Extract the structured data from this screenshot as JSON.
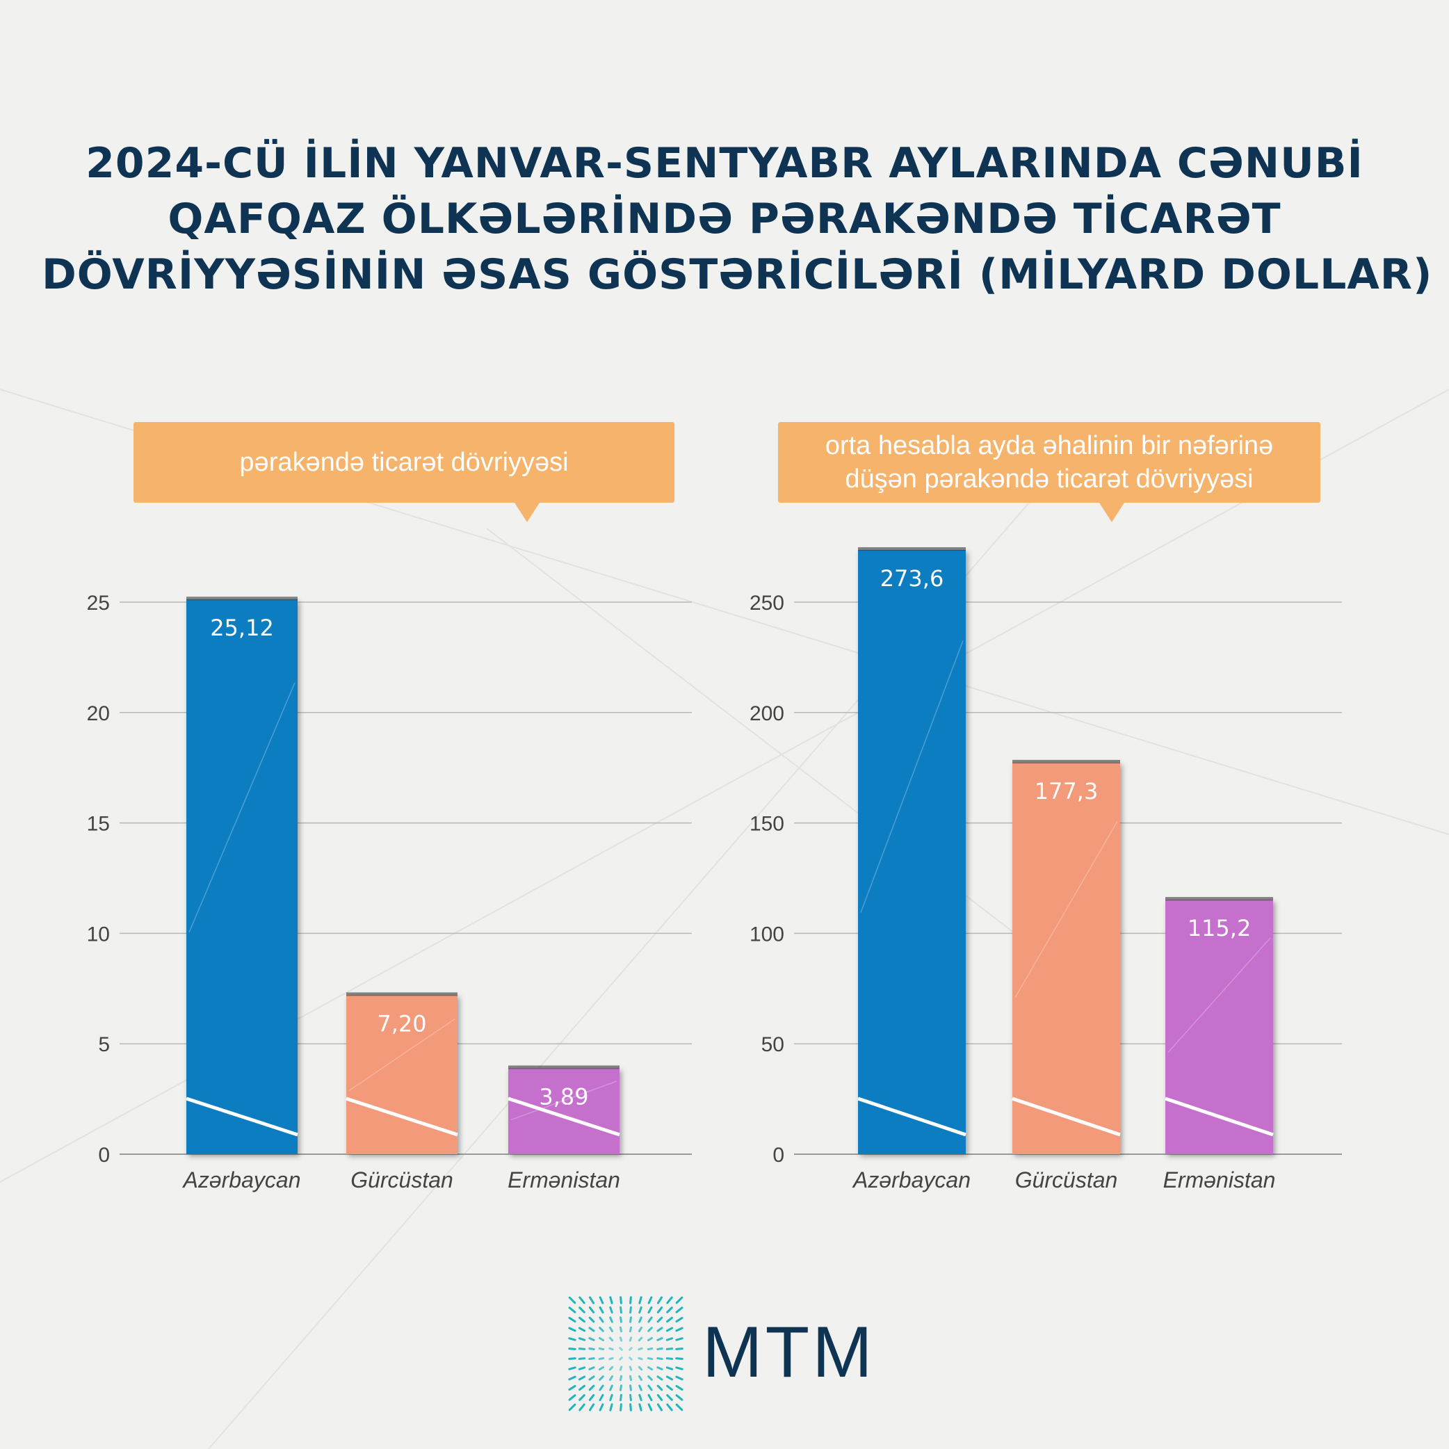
{
  "title_lines": [
    "2024-CÜ İLİN YANVAR-SENTYABR AYLARINDA CƏNUBİ",
    "QAFQAZ ÖLKƏLƏRİNDƏ PƏRAKƏNDƏ TİCARƏT",
    "DÖVRİYYƏSİNİN ƏSAS GÖSTƏRİCİLƏRİ (MİLYARD DOLLAR)"
  ],
  "brand": {
    "name": "MTM"
  },
  "colors": {
    "azerbaijan": "#0a7dc2",
    "georgia": "#f39a7a",
    "armenia": "#c470cc",
    "bubble": "#f6b36c",
    "title": "#0f3352"
  },
  "chart_data": [
    {
      "type": "bar",
      "title": "pərakəndə ticarət dövriyyəsi",
      "categories": [
        "Azərbaycan",
        "Gürcüstan",
        "Ermənistan"
      ],
      "values": [
        25.12,
        7.2,
        3.89
      ],
      "value_labels": [
        "25,12",
        "7,20",
        "3,89"
      ],
      "ylim": [
        0,
        25
      ],
      "yticks": [
        0,
        5,
        10,
        15,
        20,
        25
      ],
      "grid": true
    },
    {
      "type": "bar",
      "title": "orta hesabla ayda əhalinin bir nəfərinə düşən pərakəndə ticarət dövriyyəsi",
      "title_lines": [
        "orta hesabla ayda əhalinin bir nəfərinə",
        "düşən pərakəndə ticarət dövriyyəsi"
      ],
      "categories": [
        "Azərbaycan",
        "Gürcüstan",
        "Ermənistan"
      ],
      "values": [
        273.6,
        177.3,
        115.2
      ],
      "value_labels": [
        "273,6",
        "177,3",
        "115,2"
      ],
      "ylim": [
        0,
        250
      ],
      "yticks": [
        0,
        50,
        100,
        150,
        200,
        250
      ],
      "grid": true
    }
  ]
}
